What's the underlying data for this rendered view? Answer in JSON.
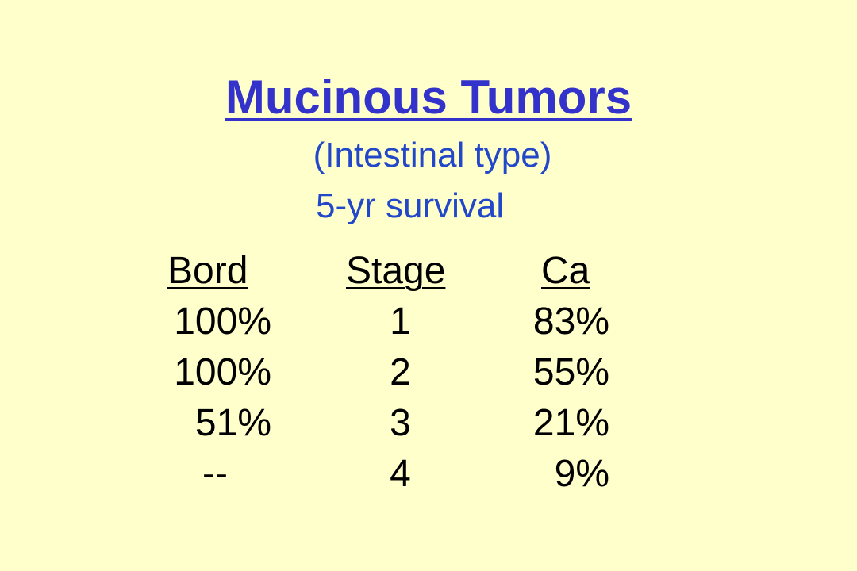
{
  "slide": {
    "title": "Mucinous Tumors",
    "subtitle_line1": "(Intestinal type)",
    "subtitle_line2": "5-yr survival"
  },
  "table": {
    "headers": {
      "bord": "Bord",
      "stage": "Stage",
      "ca": "Ca"
    },
    "rows": [
      {
        "bord": "100%",
        "stage": "1",
        "ca": "83%"
      },
      {
        "bord": "100%",
        "stage": "2",
        "ca": "55%"
      },
      {
        "bord": "51%",
        "stage": "3",
        "ca": "21%"
      },
      {
        "bord": "--",
        "stage": "4",
        "ca": "9%"
      }
    ]
  },
  "colors": {
    "background": "#FFFFCC",
    "title": "#3333CC",
    "subtitle": "#2247C8",
    "table_text": "#000000"
  }
}
